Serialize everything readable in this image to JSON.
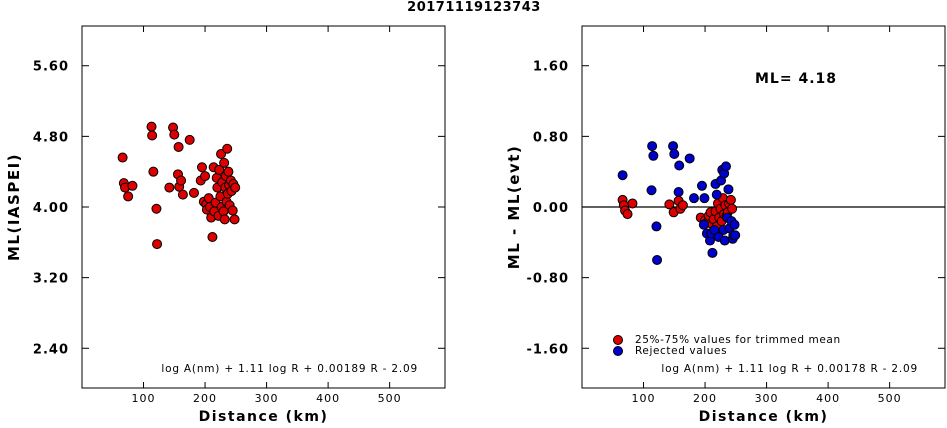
{
  "title": "20171119123743",
  "chart_data": [
    {
      "type": "scatter",
      "xlabel": "Distance (km)",
      "ylabel": "ML(IASPEI)",
      "xlim": [
        0,
        590
      ],
      "ylim": [
        1.95,
        6.05
      ],
      "xticks": [
        100,
        200,
        300,
        400,
        500
      ],
      "xtick_labels": [
        "100",
        "200",
        "300",
        "400",
        "500"
      ],
      "yticks": [
        2.4,
        3.2,
        4.0,
        4.8,
        5.6
      ],
      "ytick_labels": [
        "2.40",
        "3.20",
        "4.00",
        "4.80",
        "5.60"
      ],
      "formula": "log A(nm) + 1.11 log R + 0.00189 R - 2.09",
      "grid": false,
      "series": [
        {
          "color": "#dd0000",
          "points": [
            [
              66,
              4.56
            ],
            [
              68,
              4.27
            ],
            [
              70,
              4.22
            ],
            [
              75,
              4.12
            ],
            [
              82,
              4.24
            ],
            [
              113,
              4.91
            ],
            [
              114,
              4.81
            ],
            [
              116,
              4.4
            ],
            [
              121,
              3.98
            ],
            [
              122,
              3.58
            ],
            [
              142,
              4.22
            ],
            [
              148,
              4.9
            ],
            [
              150,
              4.82
            ],
            [
              156,
              4.37
            ],
            [
              157,
              4.68
            ],
            [
              158,
              4.23
            ],
            [
              161,
              4.3
            ],
            [
              164,
              4.14
            ],
            [
              175,
              4.76
            ],
            [
              182,
              4.16
            ],
            [
              193,
              4.3
            ],
            [
              195,
              4.45
            ],
            [
              198,
              4.06
            ],
            [
              200,
              4.35
            ],
            [
              202,
              4.03
            ],
            [
              203,
              3.97
            ],
            [
              206,
              4.1
            ],
            [
              208,
              4.0
            ],
            [
              210,
              3.88
            ],
            [
              212,
              3.66
            ],
            [
              214,
              4.45
            ],
            [
              215,
              3.95
            ],
            [
              217,
              4.05
            ],
            [
              219,
              4.33
            ],
            [
              220,
              4.22
            ],
            [
              222,
              3.9
            ],
            [
              223,
              4.42
            ],
            [
              225,
              4.12
            ],
            [
              226,
              4.6
            ],
            [
              227,
              4.0
            ],
            [
              228,
              4.28
            ],
            [
              230,
              3.95
            ],
            [
              231,
              4.5
            ],
            [
              232,
              3.86
            ],
            [
              233,
              4.22
            ],
            [
              234,
              4.35
            ],
            [
              235,
              4.06
            ],
            [
              236,
              4.66
            ],
            [
              237,
              4.15
            ],
            [
              238,
              4.4
            ],
            [
              239,
              4.25
            ],
            [
              240,
              4.02
            ],
            [
              242,
              4.3
            ],
            [
              243,
              4.18
            ],
            [
              245,
              3.96
            ],
            [
              246,
              4.26
            ],
            [
              248,
              3.86
            ],
            [
              249,
              4.22
            ]
          ]
        }
      ]
    },
    {
      "type": "scatter",
      "xlabel": "Distance (km)",
      "ylabel": "ML - ML(evt)",
      "xlim": [
        0,
        590
      ],
      "ylim": [
        -2.05,
        2.05
      ],
      "xticks": [
        100,
        200,
        300,
        400,
        500
      ],
      "xtick_labels": [
        "100",
        "200",
        "300",
        "400",
        "500"
      ],
      "yticks": [
        -1.6,
        -0.8,
        0.0,
        0.8,
        1.6
      ],
      "ytick_labels": [
        "-1.60",
        "-0.80",
        "0.00",
        "0.80",
        "1.60"
      ],
      "reference_line_y": 0.0,
      "annotation": "ML= 4.18",
      "formula": "log A(nm) + 1.11 log R + 0.00178 R - 2.09",
      "legend": {
        "placement": "bottom-left",
        "entries": [
          {
            "label": "25%-75% values for trimmed mean",
            "color": "#dd0000"
          },
          {
            "label": "Rejected values",
            "color": "#0000cc"
          }
        ]
      },
      "grid": false,
      "series": [
        {
          "name": "25%-75% values for trimmed mean",
          "color": "#dd0000",
          "points": [
            [
              66,
              0.08
            ],
            [
              68,
              0.02
            ],
            [
              70,
              -0.04
            ],
            [
              74,
              -0.08
            ],
            [
              82,
              0.04
            ],
            [
              142,
              0.03
            ],
            [
              149,
              -0.06
            ],
            [
              157,
              0.07
            ],
            [
              160,
              -0.02
            ],
            [
              164,
              0.02
            ],
            [
              193,
              -0.12
            ],
            [
              200,
              -0.15
            ],
            [
              203,
              -0.18
            ],
            [
              206,
              -0.1
            ],
            [
              209,
              -0.06
            ],
            [
              212,
              -0.2
            ],
            [
              214,
              -0.14
            ],
            [
              217,
              -0.05
            ],
            [
              219,
              -0.22
            ],
            [
              221,
              0.04
            ],
            [
              223,
              -0.12
            ],
            [
              225,
              -0.02
            ],
            [
              227,
              -0.16
            ],
            [
              229,
              0.1
            ],
            [
              231,
              -0.08
            ],
            [
              233,
              0.02
            ],
            [
              235,
              -0.1
            ],
            [
              237,
              -0.06
            ],
            [
              239,
              0.04
            ],
            [
              242,
              0.08
            ],
            [
              244,
              -0.02
            ]
          ]
        },
        {
          "name": "Rejected values",
          "color": "#0000cc",
          "points": [
            [
              66,
              0.36
            ],
            [
              113,
              0.19
            ],
            [
              114,
              0.69
            ],
            [
              116,
              0.58
            ],
            [
              121,
              -0.22
            ],
            [
              122,
              -0.6
            ],
            [
              148,
              0.69
            ],
            [
              150,
              0.6
            ],
            [
              157,
              0.17
            ],
            [
              158,
              0.47
            ],
            [
              175,
              0.55
            ],
            [
              182,
              0.1
            ],
            [
              195,
              0.24
            ],
            [
              198,
              -0.2
            ],
            [
              199,
              0.1
            ],
            [
              203,
              -0.3
            ],
            [
              208,
              -0.38
            ],
            [
              210,
              -0.3
            ],
            [
              212,
              -0.52
            ],
            [
              215,
              -0.26
            ],
            [
              217,
              0.26
            ],
            [
              219,
              0.14
            ],
            [
              222,
              -0.34
            ],
            [
              226,
              0.3
            ],
            [
              228,
              0.42
            ],
            [
              230,
              -0.26
            ],
            [
              231,
              0.38
            ],
            [
              232,
              -0.38
            ],
            [
              234,
              0.46
            ],
            [
              236,
              -0.12
            ],
            [
              238,
              0.2
            ],
            [
              240,
              -0.24
            ],
            [
              243,
              -0.16
            ],
            [
              245,
              -0.36
            ],
            [
              246,
              -0.32
            ],
            [
              248,
              -0.2
            ],
            [
              249,
              -0.32
            ]
          ]
        }
      ]
    }
  ]
}
